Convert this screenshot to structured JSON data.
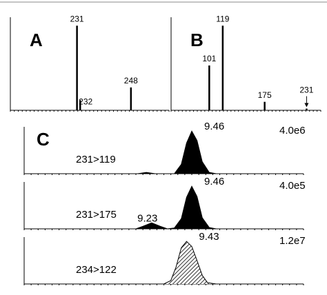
{
  "chart_data": [
    {
      "type": "bar",
      "panel": "A",
      "x": [
        231,
        232,
        248
      ],
      "values": [
        100,
        12,
        27
      ],
      "xlim": [
        210,
        260
      ],
      "ylim": [
        0,
        110
      ],
      "color": "#000000"
    },
    {
      "type": "bar",
      "panel": "B",
      "x": [
        101,
        119,
        175,
        231
      ],
      "values": [
        53,
        100,
        10,
        2
      ],
      "xlim": [
        50,
        250
      ],
      "ylim": [
        0,
        110
      ],
      "color": "#000000",
      "arrow_at": 231
    },
    {
      "type": "area",
      "panel": "C",
      "transition": "231>119",
      "scale": "4.0e6",
      "peak_labels": [
        9.46
      ],
      "x": [
        8.5,
        9.15,
        9.2,
        9.25,
        9.36,
        9.4,
        9.43,
        9.46,
        9.49,
        9.52,
        9.56,
        9.6,
        10.1
      ],
      "values": [
        0,
        0,
        3,
        0,
        0,
        22,
        72,
        100,
        78,
        28,
        3,
        0,
        0
      ],
      "xlim": [
        8.5,
        10.1
      ],
      "ylim": [
        0,
        110
      ],
      "color": "#000000",
      "pattern": "solid"
    },
    {
      "type": "area",
      "transition": "231>175",
      "scale": "4.0e5",
      "peak_labels": [
        9.23,
        9.46
      ],
      "x": [
        8.5,
        9.14,
        9.18,
        9.23,
        9.28,
        9.32,
        9.36,
        9.4,
        9.43,
        9.46,
        9.49,
        9.52,
        9.56,
        9.6,
        10.1
      ],
      "values": [
        0,
        0,
        6,
        14,
        6,
        0,
        2,
        24,
        74,
        100,
        76,
        26,
        3,
        0,
        0
      ],
      "xlim": [
        8.5,
        10.1
      ],
      "ylim": [
        0,
        110
      ],
      "color": "#000000",
      "pattern": "solid"
    },
    {
      "type": "area",
      "transition": "234>122",
      "scale": "1.2e7",
      "peak_labels": [
        9.43
      ],
      "x": [
        8.5,
        9.3,
        9.34,
        9.37,
        9.4,
        9.43,
        9.46,
        9.49,
        9.52,
        9.55,
        9.6,
        10.1
      ],
      "values": [
        0,
        0,
        8,
        40,
        85,
        100,
        88,
        55,
        20,
        3,
        0,
        0
      ],
      "xlim": [
        8.5,
        10.1
      ],
      "ylim": [
        0,
        110
      ],
      "color": "#000000",
      "pattern": "hatched"
    }
  ]
}
